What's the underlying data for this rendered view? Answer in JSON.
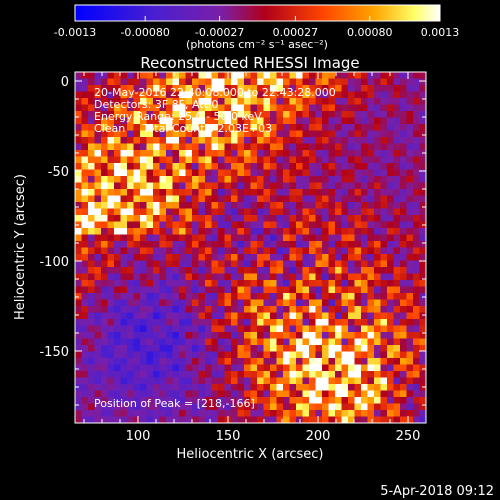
{
  "chart_data": {
    "type": "heatmap",
    "title": "Reconstructed RHESSI Image",
    "xlabel": "Heliocentric X (arcsec)",
    "ylabel": "Heliocentric Y (arcsec)",
    "xlim": [
      65,
      260
    ],
    "ylim": [
      -190,
      5
    ],
    "x_ticks": [
      "100",
      "150",
      "200",
      "250"
    ],
    "x_tick_values": [
      100,
      150,
      200,
      250
    ],
    "y_ticks": [
      "0",
      "-50",
      "-100",
      "-150"
    ],
    "y_tick_values": [
      0,
      -50,
      -100,
      -150
    ],
    "colorbar": {
      "ticks": [
        "-0.0013",
        "-0.00080",
        "-0.00027",
        "0.00027",
        "0.00080",
        "0.0013"
      ],
      "tick_values": [
        -0.0013,
        -0.0008,
        -0.00027,
        0.00027,
        0.0008,
        0.0013
      ],
      "range": [
        -0.0013,
        0.0013
      ],
      "label": "(photons cm⁻² s⁻¹ asec⁻²)",
      "colors": [
        "#0000ff",
        "#7a1fa8",
        "#c0001a",
        "#ff4500",
        "#ffa500",
        "#ffff66",
        "#ffffff"
      ]
    },
    "annotations": [
      "20-May-2016 22:40:08.000 to 22:43:28.000",
      "Detectors: 3F 8F, Att 0",
      "Energy Range: 25.0 - 50.0 keV",
      "Clean     Total Counts: 2.03E+03"
    ],
    "peak_label": "Position of Peak = [218,-166]",
    "peak": {
      "x": 218,
      "y": -166
    },
    "grid": false,
    "legend": "none"
  },
  "footer": {
    "date": "5-Apr-2018 09:12"
  }
}
